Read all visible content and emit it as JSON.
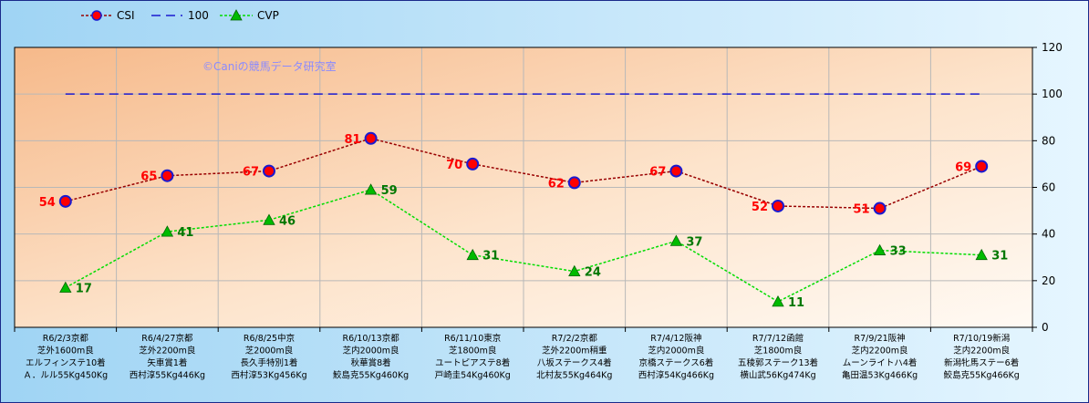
{
  "chart_data": {
    "type": "line",
    "categories": [
      [
        "R6/2/3京都",
        "芝外1600m良",
        "エルフィンステ10着",
        "Ａ．ルル55Kg450Kg"
      ],
      [
        "R6/4/27京都",
        "芝外2200m良",
        "矢車賞1着",
        "西村淳55Kg446Kg"
      ],
      [
        "R6/8/25中京",
        "芝2000m良",
        "長久手特別1着",
        "西村淳53Kg456Kg"
      ],
      [
        "R6/10/13京都",
        "芝内2000m良",
        "秋華賞8着",
        "鮫島克55Kg460Kg"
      ],
      [
        "R6/11/10東京",
        "芝1800m良",
        "ユートピアステ8着",
        "戸崎圭54Kg460Kg"
      ],
      [
        "R7/2/2京都",
        "芝外2200m稍重",
        "八坂ステークス4着",
        "北村友55Kg464Kg"
      ],
      [
        "R7/4/12阪神",
        "芝内2000m良",
        "京橋ステークス6着",
        "西村淳54Kg466Kg"
      ],
      [
        "R7/7/12函館",
        "芝1800m良",
        "五稜郭ステーク13着",
        "横山武56Kg474Kg"
      ],
      [
        "R7/9/21阪神",
        "芝内2200m良",
        "ムーンライトハ4着",
        "亀田温53Kg466Kg"
      ],
      [
        "R7/10/19新潟",
        "芝内2200m良",
        "新潟牝馬ステー6着",
        "鮫島克55Kg466Kg"
      ]
    ],
    "series": [
      {
        "name": "CSI",
        "values": [
          54,
          65,
          67,
          81,
          70,
          62,
          67,
          52,
          51,
          69
        ],
        "color": "#990000",
        "marker": "circle",
        "marker_color": "#ff0000",
        "marker_edge": "#1a1ad0",
        "label_color": "#ff0000"
      },
      {
        "name": "100",
        "values": [
          100,
          100,
          100,
          100,
          100,
          100,
          100,
          100,
          100,
          100
        ],
        "color": "#1a1ad0",
        "marker": "none"
      },
      {
        "name": "CVP",
        "values": [
          17,
          41,
          46,
          59,
          31,
          24,
          37,
          11,
          33,
          31
        ],
        "color": "#00dd00",
        "marker": "triangle",
        "marker_color": "#00bb00",
        "label_color": "#007700"
      }
    ],
    "ylim": [
      0,
      120
    ],
    "yticks": [
      0,
      20,
      40,
      60,
      80,
      100,
      120
    ],
    "grid": true,
    "legend_position": "top-left",
    "annotation": "©Caniの競馬データ研究室"
  }
}
